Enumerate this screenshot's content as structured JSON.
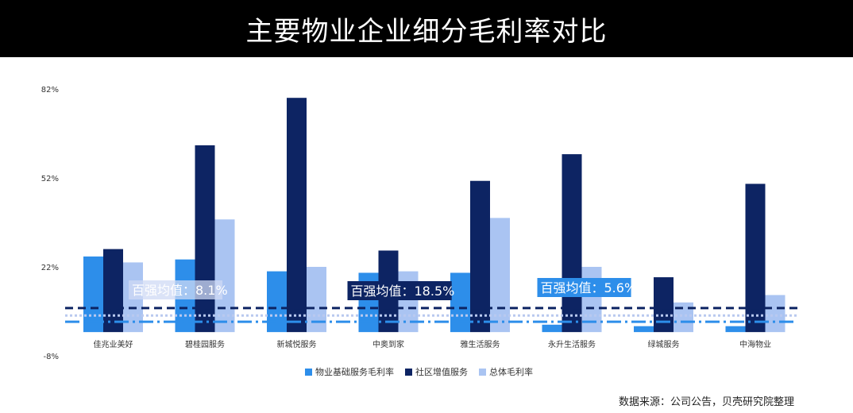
{
  "title": "主要物业企业细分毛利率对比",
  "source": "数据来源：公司公告，贝壳研究院整理",
  "colors": {
    "basic": "#2d8eea",
    "community": "#0d2463",
    "overall": "#aac4f2",
    "title_bg": "#000000"
  },
  "chart_data": {
    "type": "bar",
    "categories": [
      "佳兆业美好",
      "碧桂园服务",
      "新城悦服务",
      "中奥到家",
      "雅生活服务",
      "永升生活服务",
      "绿城服务",
      "中海物业"
    ],
    "series": [
      {
        "name": "物业基础服务毛利率",
        "color": "#2d8eea",
        "values": [
          25.5,
          24.5,
          20.5,
          20,
          20,
          2.5,
          2,
          2
        ]
      },
      {
        "name": "社区增值服务",
        "color": "#0d2463",
        "values": [
          28,
          63,
          79,
          27.5,
          51,
          60,
          18.5,
          50
        ]
      },
      {
        "name": "总体毛利率",
        "color": "#aac4f2",
        "values": [
          23.5,
          38,
          22,
          20.5,
          38.5,
          22,
          10,
          12.5
        ]
      }
    ],
    "yticks": [
      "82%",
      "52%",
      "22%",
      "-8%"
    ],
    "ytick_values": [
      82,
      52,
      22,
      -8
    ],
    "ylim": [
      -8,
      82
    ],
    "reference_lines": [
      {
        "value": 8.1,
        "color": "#0d2463",
        "style": "dash"
      },
      {
        "value": 5.6,
        "color": "#b9c9ef",
        "style": "dot"
      },
      {
        "value": 3.5,
        "color": "#2d8eea",
        "style": "dashdot"
      }
    ],
    "annotations": [
      {
        "text": "百强均值：8.1%",
        "category_index": 0,
        "style": "light"
      },
      {
        "text": "百强均值：18.5%",
        "category_index": 3,
        "style": "dark"
      },
      {
        "text": "百强均值：5.6%",
        "category_index": 5,
        "style": "blue"
      }
    ],
    "legend": "bottom",
    "grid": false
  }
}
